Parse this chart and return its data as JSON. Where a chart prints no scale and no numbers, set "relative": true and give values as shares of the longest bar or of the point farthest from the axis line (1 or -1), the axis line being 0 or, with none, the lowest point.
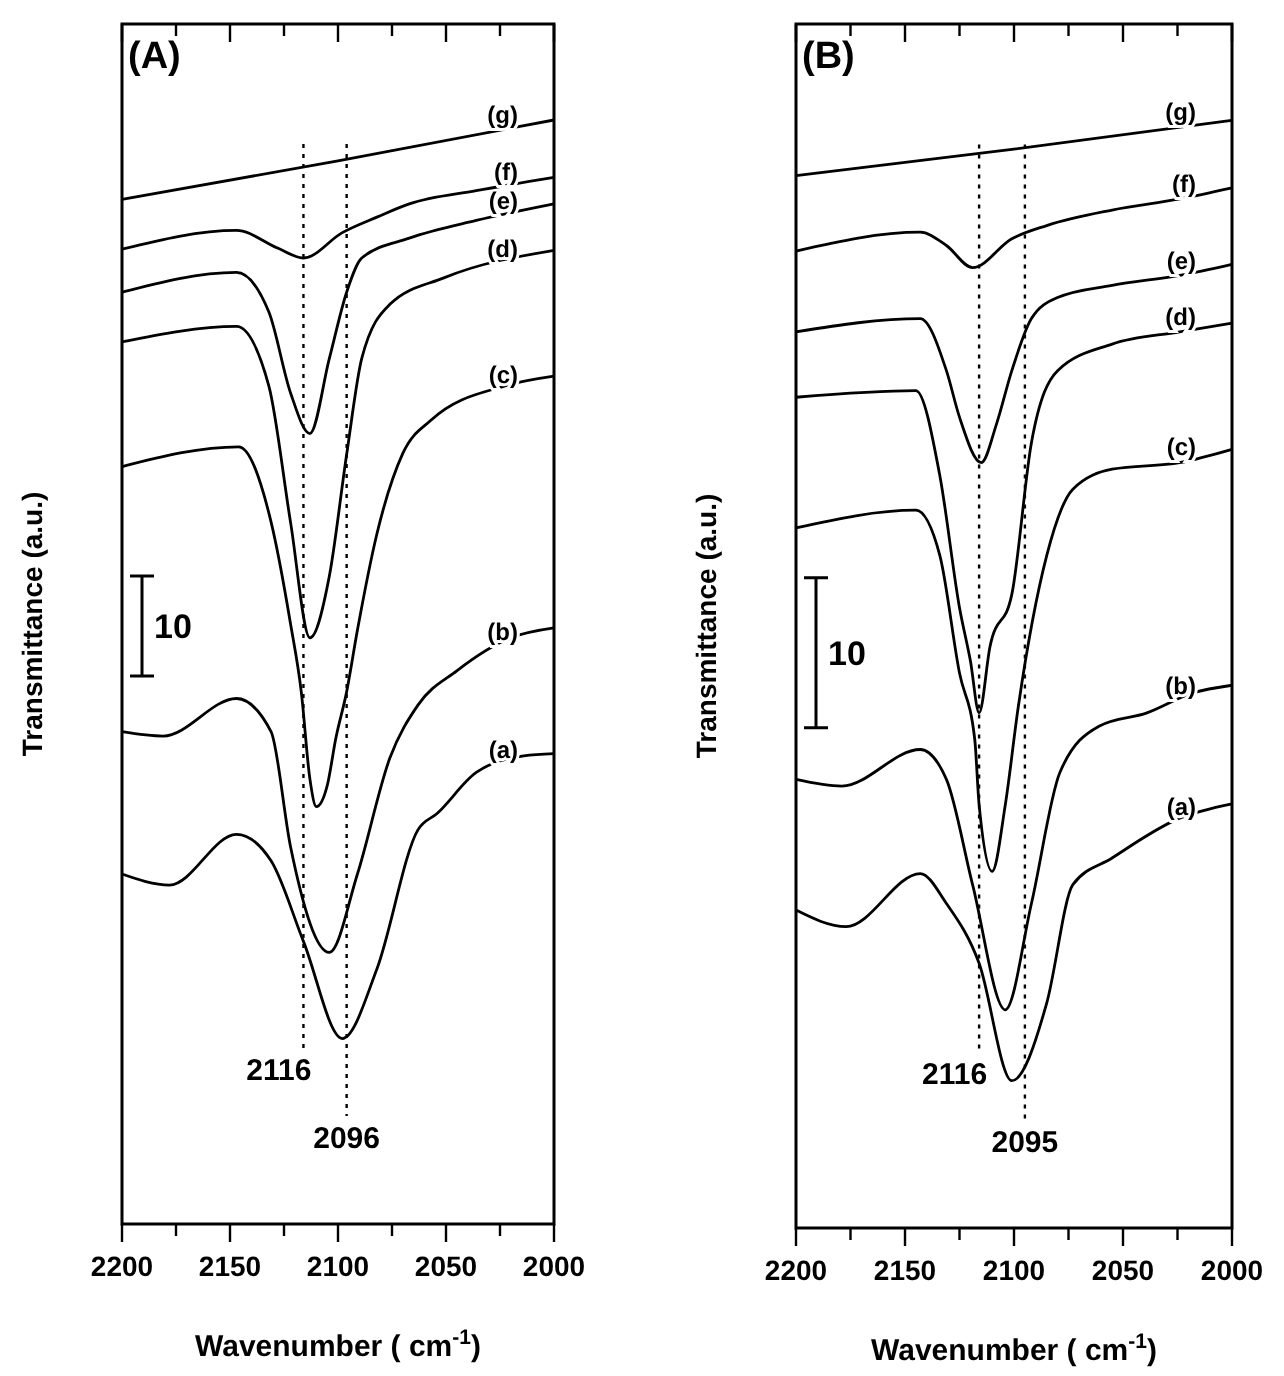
{
  "chart_data": [
    {
      "type": "line",
      "title": "(A)",
      "xlabel": "Wavenumber ( cm$^{-1}$)",
      "ylabel": "Transmittance (a.u.)",
      "relative": true,
      "xlim": [
        2200,
        2000
      ],
      "xticks": [
        2200,
        {
          "value": 2175,
          "label": null
        },
        2150,
        {
          "value": 2125,
          "label": null
        },
        2100,
        {
          "value": 2075,
          "label": null
        },
        2050,
        {
          "value": 2025,
          "label": null
        },
        2000
      ],
      "annotations": [
        "10"
      ],
      "ref_lines": [
        {
          "axis": "x",
          "value": 2116,
          "label": "2116",
          "line_style": "dotted"
        },
        {
          "axis": "x",
          "value": 2096,
          "label": "2096",
          "line_style": "dotted"
        }
      ],
      "series": [
        {
          "name": "(a)",
          "color": "#000000",
          "x": [
            2200,
            2178,
            2147,
            2131,
            2116,
            2098,
            2082,
            2063,
            2054,
            2036,
            2014,
            2000
          ],
          "values": [
            0.317,
            0.307,
            0.353,
            0.329,
            0.256,
            0.168,
            0.231,
            0.357,
            0.372,
            0.409,
            0.424,
            0.426
          ]
        },
        {
          "name": "(b)",
          "color": "#000000",
          "x": [
            2200,
            2181,
            2147,
            2131,
            2122,
            2104,
            2091,
            2076,
            2063,
            2045,
            2020,
            2000
          ],
          "values": [
            0.446,
            0.442,
            0.476,
            0.446,
            0.342,
            0.246,
            0.317,
            0.422,
            0.47,
            0.501,
            0.531,
            0.54
          ]
        },
        {
          "name": "(c)",
          "color": "#000000",
          "x": [
            2200,
            2146,
            2131,
            2122,
            2117,
            2113,
            2110,
            2105,
            2101,
            2096,
            2091,
            2082,
            2070,
            2057,
            2023,
            2000
          ],
          "values": [
            0.686,
            0.704,
            0.636,
            0.544,
            0.482,
            0.403,
            0.378,
            0.397,
            0.44,
            0.482,
            0.538,
            0.625,
            0.698,
            0.728,
            0.759,
            0.768
          ]
        },
        {
          "name": "(d)",
          "color": "#000000",
          "x": [
            2200,
            2147,
            2132,
            2122,
            2113,
            2104,
            2096,
            2089,
            2076,
            2051,
            2000
          ],
          "values": [
            0.799,
            0.813,
            0.759,
            0.636,
            0.531,
            0.587,
            0.697,
            0.784,
            0.833,
            0.857,
            0.882
          ]
        },
        {
          "name": "(e)",
          "color": "#000000",
          "x": [
            2200,
            2147,
            2132,
            2122,
            2113,
            2104,
            2096,
            2089,
            2067,
            2036,
            2000
          ],
          "values": [
            0.844,
            0.862,
            0.826,
            0.753,
            0.716,
            0.784,
            0.844,
            0.875,
            0.893,
            0.909,
            0.924
          ]
        },
        {
          "name": "(f)",
          "color": "#000000",
          "x": [
            2200,
            2147,
            2128,
            2116,
            2098,
            2082,
            2067,
            2036,
            2000
          ],
          "values": [
            0.883,
            0.9,
            0.884,
            0.875,
            0.898,
            0.912,
            0.924,
            0.936,
            0.948
          ]
        },
        {
          "name": "(g)",
          "color": "#000000",
          "x": [
            2200,
            2100,
            2000
          ],
          "values": [
            0.928,
            0.963,
            1
          ]
        }
      ]
    },
    {
      "type": "line",
      "title": "(B)",
      "xlabel": "Wavenumber ( cm$^{-1}$)",
      "ylabel": "Transmittance (a.u.)",
      "relative": true,
      "xlim": [
        2200,
        2000
      ],
      "xticks": [
        2200,
        {
          "value": 2175,
          "label": null
        },
        2150,
        {
          "value": 2125,
          "label": null
        },
        2100,
        {
          "value": 2075,
          "label": null
        },
        2050,
        {
          "value": 2025,
          "label": null
        },
        2000
      ],
      "annotations": [
        "10"
      ],
      "ref_lines": [
        {
          "axis": "x",
          "value": 2116,
          "label": "2116",
          "line_style": "dotted"
        },
        {
          "axis": "x",
          "value": 2095,
          "label": "2095",
          "line_style": "dotted"
        }
      ],
      "series": [
        {
          "name": "(a)",
          "color": "#000000",
          "x": [
            2200,
            2177,
            2143,
            2131,
            2116,
            2101,
            2085,
            2073,
            2055,
            2024,
            2000
          ],
          "values": [
            0.287,
            0.272,
            0.32,
            0.293,
            0.239,
            0.133,
            0.203,
            0.31,
            0.334,
            0.37,
            0.383
          ]
        },
        {
          "name": "(b)",
          "color": "#000000",
          "x": [
            2200,
            2179,
            2143,
            2131,
            2119,
            2104,
            2092,
            2079,
            2061,
            2039,
            2018,
            2000
          ],
          "values": [
            0.405,
            0.399,
            0.432,
            0.405,
            0.31,
            0.197,
            0.293,
            0.411,
            0.453,
            0.465,
            0.483,
            0.49
          ]
        },
        {
          "name": "(c)",
          "color": "#000000",
          "x": [
            2200,
            2145,
            2134,
            2125,
            2118,
            2116,
            2110,
            2104,
            2098,
            2085,
            2073,
            2055,
            2024,
            2000
          ],
          "values": [
            0.632,
            0.648,
            0.607,
            0.501,
            0.441,
            0.382,
            0.322,
            0.382,
            0.471,
            0.607,
            0.667,
            0.685,
            0.691,
            0.703
          ]
        },
        {
          "name": "(d)",
          "color": "#000000",
          "x": [
            2200,
            2145,
            2134,
            2125,
            2120,
            2116,
            2111,
            2101,
            2092,
            2080,
            2055,
            2024,
            2000
          ],
          "values": [
            0.75,
            0.756,
            0.679,
            0.56,
            0.512,
            0.465,
            0.525,
            0.572,
            0.709,
            0.774,
            0.798,
            0.809,
            0.817
          ]
        },
        {
          "name": "(e)",
          "color": "#000000",
          "x": [
            2200,
            2143,
            2131,
            2125,
            2115,
            2108,
            2101,
            2092,
            2080,
            2055,
            2024,
            2000
          ],
          "values": [
            0.809,
            0.821,
            0.774,
            0.732,
            0.691,
            0.726,
            0.774,
            0.821,
            0.84,
            0.851,
            0.86,
            0.87
          ]
        },
        {
          "name": "(f)",
          "color": "#000000",
          "x": [
            2200,
            2143,
            2131,
            2119,
            2101,
            2085,
            2055,
            2024,
            2000
          ],
          "values": [
            0.882,
            0.899,
            0.887,
            0.867,
            0.893,
            0.905,
            0.919,
            0.929,
            0.939
          ]
        },
        {
          "name": "(g)",
          "color": "#000000",
          "x": [
            2200,
            2100,
            2000
          ],
          "values": [
            0.95,
            0.974,
            1
          ]
        }
      ]
    }
  ]
}
